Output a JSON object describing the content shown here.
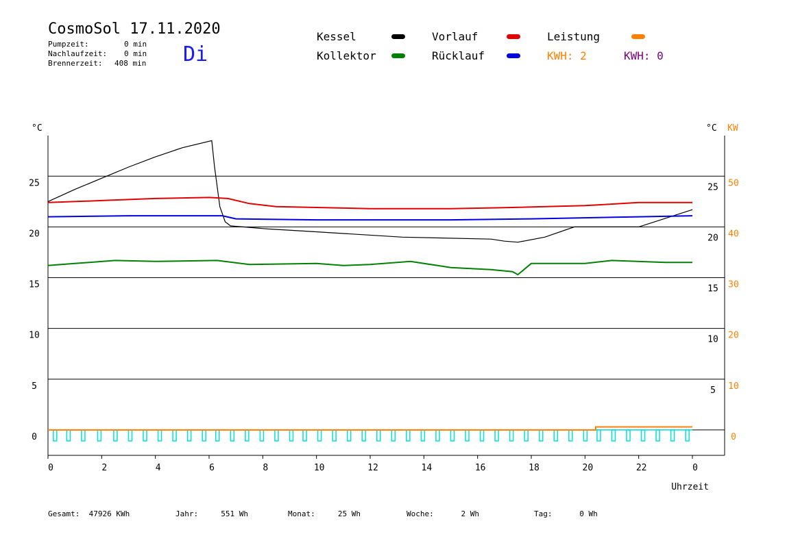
{
  "header": {
    "title": "CosmoSol 17.11.2020",
    "day": "Di",
    "pumpzeit_label": "Pumpzeit:",
    "pumpzeit_value": "0 min",
    "nachlaufzeit_label": "Nachlaufzeit:",
    "nachlaufzeit_value": "0 min",
    "brennerzeit_label": "Brennerzeit:",
    "brennerzeit_value": "408 min"
  },
  "legend": {
    "kessel": "Kessel",
    "kollektor": "Kollektor",
    "vorlauf": "Vorlauf",
    "ruecklauf": "Rücklauf",
    "leistung": "Leistung",
    "kwh_left": "KWH: 2",
    "kwh_right": "KWH: 0"
  },
  "colors": {
    "kessel": "#000000",
    "kollektor": "#008000",
    "vorlauf": "#e00000",
    "ruecklauf": "#0000e0",
    "leistung": "#ff8000",
    "kwh_right": "#800080",
    "pump": "#00e0e0"
  },
  "footer": {
    "gesamt": "Gesamt:  47926 KWh",
    "jahr": "Jahr:     551 Wh",
    "monat": "Monat:     25 Wh",
    "woche": "Woche:      2 Wh",
    "tag": "Tag:      0 Wh"
  },
  "chart_data": {
    "type": "line",
    "xlabel": "Uhrzeit",
    "ylabel_left": "°C",
    "ylabel_right": "°C",
    "ylabel_right2": "KW",
    "xlim": [
      0,
      24
    ],
    "ylim": [
      -2.5,
      29
    ],
    "ylim_kw": [
      -5,
      58
    ],
    "xticks": [
      "0",
      "2",
      "4",
      "6",
      "8",
      "10",
      "12",
      "14",
      "16",
      "18",
      "20",
      "22",
      "0"
    ],
    "yticks_left": [
      "0",
      "5",
      "10",
      "15",
      "20",
      "25"
    ],
    "yticks_right_c": [
      "5",
      "10",
      "15",
      "20",
      "25"
    ],
    "yticks_right_kw": [
      "0",
      "10",
      "20",
      "30",
      "40",
      "50"
    ],
    "grid": "horizontal",
    "series": [
      {
        "name": "Kessel",
        "key": "kessel",
        "x": [
          0,
          1,
          2,
          3,
          4,
          5,
          6.1,
          6.2,
          6.4,
          6.6,
          6.8,
          8.2,
          9.5,
          13.2,
          16.5,
          17.0,
          17.5,
          18.5,
          19.6,
          22.0,
          24.0
        ],
        "y": [
          22.5,
          23.7,
          24.8,
          25.9,
          26.9,
          27.8,
          28.5,
          26.0,
          22.0,
          20.5,
          20.1,
          19.8,
          19.6,
          19.0,
          18.8,
          18.6,
          18.5,
          19.0,
          20.0,
          20.0,
          21.7
        ]
      },
      {
        "name": "Vorlauf",
        "key": "vorlauf",
        "x": [
          0,
          2,
          4,
          6,
          6.7,
          7.5,
          8.5,
          12,
          15,
          17,
          20,
          22,
          24
        ],
        "y": [
          22.4,
          22.6,
          22.8,
          22.9,
          22.8,
          22.3,
          22.0,
          21.8,
          21.8,
          21.9,
          22.1,
          22.4,
          22.4
        ]
      },
      {
        "name": "Rücklauf",
        "key": "ruecklauf",
        "x": [
          0,
          3,
          6.5,
          7.0,
          10,
          15,
          18,
          22,
          24
        ],
        "y": [
          21.0,
          21.1,
          21.1,
          20.8,
          20.7,
          20.7,
          20.8,
          21.0,
          21.1
        ]
      },
      {
        "name": "Kollektor",
        "key": "kollektor",
        "x": [
          0,
          1,
          2.5,
          4,
          6.3,
          7.5,
          10,
          11,
          12,
          13.5,
          15,
          16.5,
          17.3,
          17.5,
          18,
          20,
          21,
          23,
          24
        ],
        "y": [
          16.2,
          16.4,
          16.7,
          16.6,
          16.7,
          16.3,
          16.4,
          16.2,
          16.3,
          16.6,
          16.0,
          15.8,
          15.6,
          15.3,
          16.4,
          16.4,
          16.7,
          16.5,
          16.5
        ]
      },
      {
        "name": "Leistung",
        "key": "leistung",
        "axis": "kw",
        "x": [
          0,
          20.4,
          20.4,
          24
        ],
        "y": [
          0,
          0,
          0.6,
          0.6
        ]
      }
    ],
    "pump_pulses_hours": [
      0.25,
      0.75,
      1.3,
      1.9,
      2.5,
      3.05,
      3.6,
      4.15,
      4.7,
      5.25,
      5.8,
      6.3,
      6.85,
      7.4,
      7.95,
      8.5,
      9.05,
      9.55,
      10.1,
      10.65,
      11.2,
      11.75,
      12.3,
      12.85,
      13.4,
      13.95,
      14.5,
      15.05,
      15.6,
      16.15,
      16.7,
      17.25,
      17.8,
      18.35,
      18.9,
      19.45,
      20.0,
      20.5,
      21.05,
      21.6,
      22.15,
      22.7,
      23.25,
      23.8
    ]
  }
}
